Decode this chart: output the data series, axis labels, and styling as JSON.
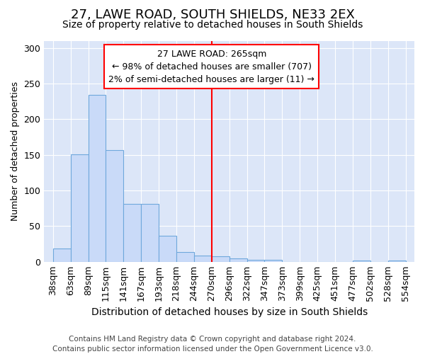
{
  "title": "27, LAWE ROAD, SOUTH SHIELDS, NE33 2EX",
  "subtitle": "Size of property relative to detached houses in South Shields",
  "xlabel": "Distribution of detached houses by size in South Shields",
  "ylabel": "Number of detached properties",
  "footnote": "Contains HM Land Registry data © Crown copyright and database right 2024.\nContains public sector information licensed under the Open Government Licence v3.0.",
  "bar_values": [
    19,
    151,
    234,
    157,
    81,
    81,
    37,
    14,
    9,
    8,
    5,
    3,
    3,
    0,
    0,
    0,
    0,
    2,
    0,
    2
  ],
  "bar_labels": [
    "38sqm",
    "63sqm",
    "89sqm",
    "115sqm",
    "141sqm",
    "167sqm",
    "193sqm",
    "218sqm",
    "244sqm",
    "270sqm",
    "296sqm",
    "322sqm",
    "347sqm",
    "373sqm",
    "399sqm",
    "425sqm",
    "451sqm",
    "477sqm",
    "502sqm",
    "528sqm",
    "554sqm"
  ],
  "bar_color": "#c9daf8",
  "bar_edge_color": "#6fa8dc",
  "property_label": "27 LAWE ROAD: 265sqm",
  "annotation_line1": "← 98% of detached houses are smaller (707)",
  "annotation_line2": "2% of semi-detached houses are larger (11) →",
  "vline_color": "red",
  "vline_x_idx": 9,
  "ylim": [
    0,
    310
  ],
  "yticks": [
    0,
    50,
    100,
    150,
    200,
    250,
    300
  ],
  "background_color": "#dce6f8",
  "title_fontsize": 13,
  "subtitle_fontsize": 10,
  "annotation_fontsize": 9,
  "footnote_fontsize": 7.5,
  "ylabel_fontsize": 9,
  "xlabel_fontsize": 10
}
